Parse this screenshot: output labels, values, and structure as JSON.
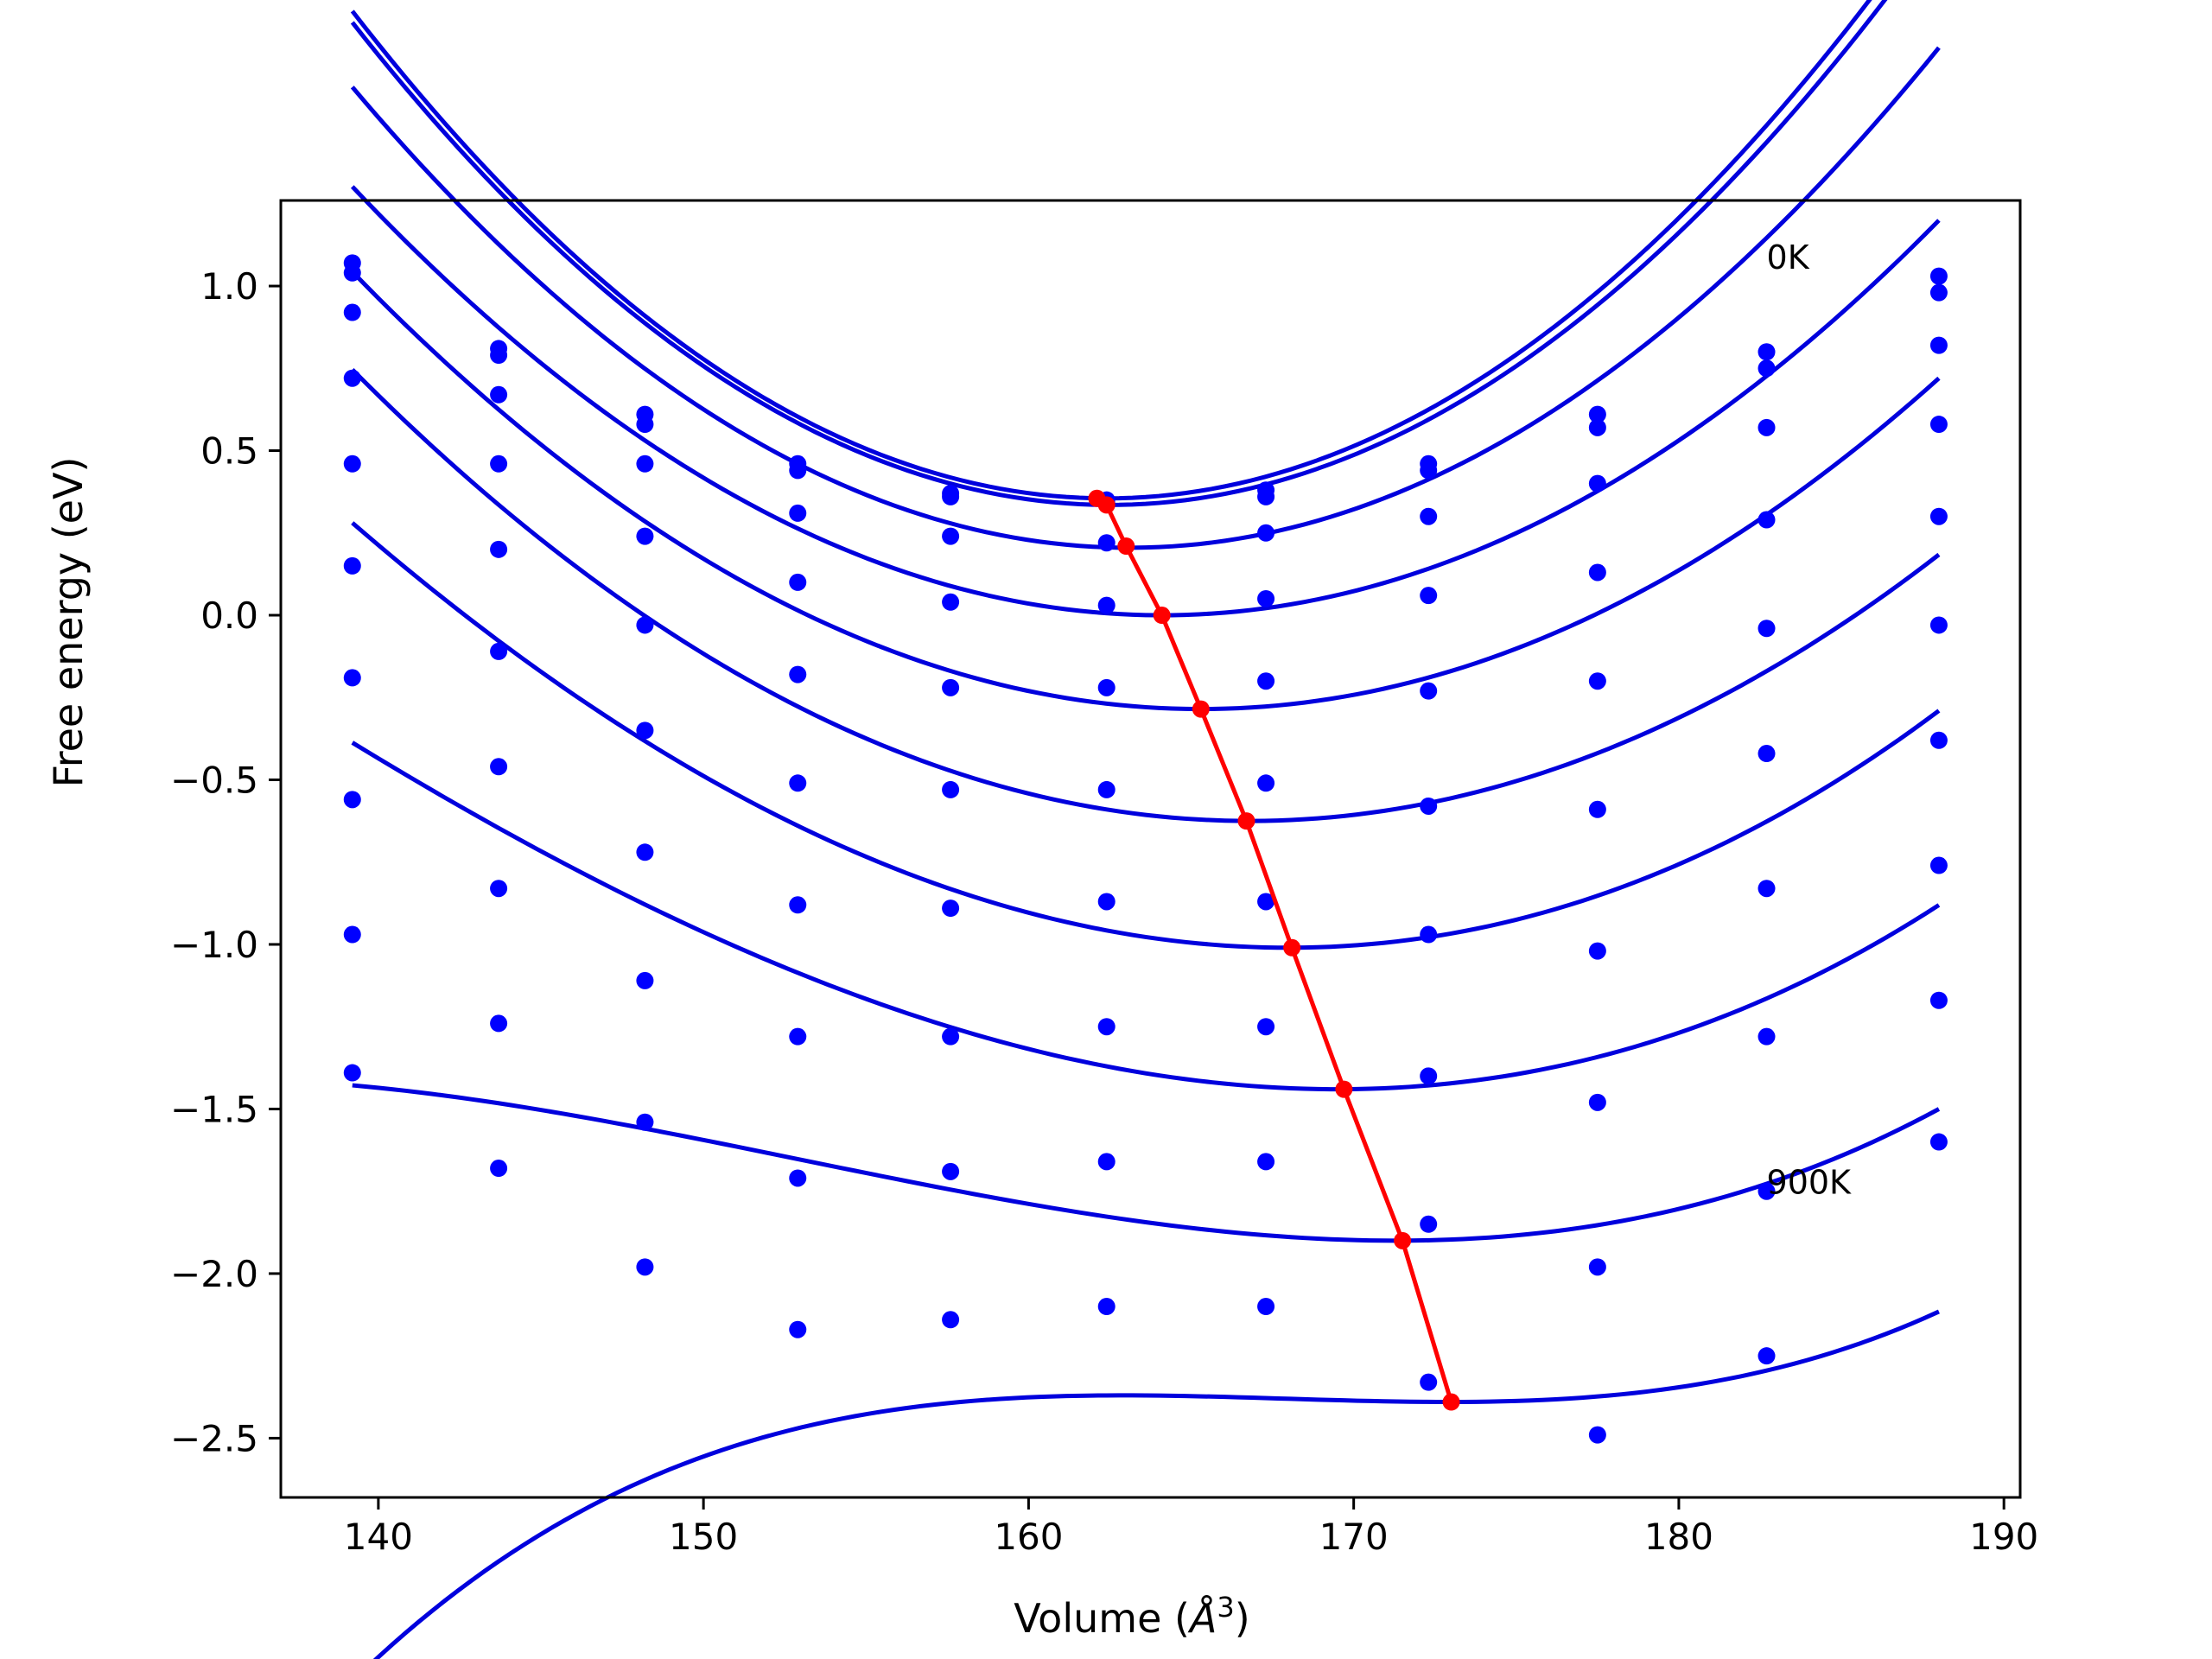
{
  "chart_data": {
    "type": "scatter",
    "title": "",
    "xlabel": "Volume (",
    "xlabel_symbol": "Å",
    "xlabel_sup": "3",
    "xlabel_end": ")",
    "ylabel": "Free energy (eV)",
    "xlim": [
      137,
      190.5
    ],
    "ylim": [
      -2.68,
      1.26
    ],
    "grid": false,
    "xticks": [
      140,
      150,
      160,
      170,
      180,
      190
    ],
    "xtick_labels": [
      "140",
      "150",
      "160",
      "170",
      "180",
      "190"
    ],
    "yticks": [
      1.0,
      0.5,
      0.0,
      -0.5,
      -1.0,
      -1.5,
      -2.0,
      -2.5
    ],
    "ytick_labels": [
      "1.0",
      "0.5",
      "0.0",
      "−0.5",
      "−1.0",
      "−1.5",
      "−2.0",
      "−2.5"
    ],
    "annotations": [
      {
        "text": "0K",
        "x": 182.7,
        "y": 1.09
      },
      {
        "text": "900K",
        "x": 182.7,
        "y": -1.72
      }
    ],
    "volumes": [
      139.2,
      143.7,
      148.2,
      152.9,
      157.6,
      162.4,
      167.3,
      172.3,
      177.5,
      182.7,
      188.0
    ],
    "series": [
      {
        "values": [
          1.07,
          0.81,
          0.61,
          0.46,
          0.37,
          0.35,
          0.38,
          0.46,
          0.61,
          0.8,
          1.03
        ],
        "fit": [
          139.2,
          188.0,
          162.4,
          0.355,
          0.00275,
          0.0
        ]
      },
      {
        "values": [
          1.04,
          0.79,
          0.58,
          0.44,
          0.36,
          0.34,
          0.36,
          0.44,
          0.57,
          0.75,
          0.98
        ],
        "fit": [
          139.2,
          188.0,
          162.5,
          0.335,
          0.0027,
          0.0
        ]
      },
      {
        "values": [
          0.92,
          0.67,
          0.46,
          0.31,
          0.24,
          0.22,
          0.25,
          0.3,
          0.4,
          0.57,
          0.82
        ],
        "fit": [
          139.2,
          188.0,
          163.1,
          0.205,
          0.00245,
          0.0
        ]
      },
      {
        "values": [
          0.72,
          0.46,
          0.24,
          0.1,
          0.04,
          0.03,
          0.05,
          0.06,
          0.13,
          0.29,
          0.58
        ],
        "fit": [
          139.2,
          188.0,
          164.1,
          0.0,
          0.0021,
          0.0
        ]
      },
      {
        "values": [
          0.46,
          0.2,
          -0.03,
          -0.18,
          -0.22,
          -0.22,
          -0.2,
          -0.23,
          -0.2,
          -0.04,
          0.3
        ],
        "fit": [
          139.2,
          188.0,
          165.3,
          -0.285,
          0.00195,
          0.0
        ]
      },
      {
        "values": [
          0.15,
          -0.11,
          -0.35,
          -0.51,
          -0.53,
          -0.53,
          -0.51,
          -0.58,
          -0.59,
          -0.42,
          -0.03
        ],
        "fit": [
          139.2,
          188.0,
          166.8,
          -0.625,
          0.0018,
          0.0
        ]
      },
      {
        "values": [
          -0.19,
          -0.46,
          -0.72,
          -0.88,
          -0.89,
          -0.87,
          -0.87,
          -0.97,
          -1.02,
          -0.83,
          -0.38
        ],
        "fit": [
          139.2,
          188.0,
          168.0,
          -1.01,
          0.0017,
          5e-06
        ]
      },
      {
        "values": [
          -0.56,
          -0.83,
          -1.11,
          -1.28,
          -1.28,
          -1.25,
          -1.25,
          -1.4,
          -1.48,
          -1.28,
          -0.76
        ],
        "fit": [
          139.2,
          188.0,
          169.5,
          -1.44,
          0.00145,
          1e-05
        ]
      },
      {
        "values": [
          -0.97,
          -1.24,
          -1.54,
          -1.71,
          -1.69,
          -1.66,
          -1.66,
          -1.85,
          -1.98,
          -1.75,
          -1.17
        ],
        "fit": [
          139.2,
          188.0,
          171.3,
          -1.9,
          0.0011,
          2e-05
        ]
      },
      {
        "values": [
          -1.39,
          -1.68,
          -1.98,
          -2.17,
          -2.14,
          -2.1,
          -2.1,
          -2.33,
          -2.49,
          -2.25,
          -1.6
        ],
        "fit": [
          139.2,
          188.0,
          172.9,
          -2.39,
          0.0006,
          4e-05
        ]
      }
    ],
    "equilibrium": {
      "x": [
        162.1,
        162.4,
        163.0,
        164.1,
        165.3,
        166.7,
        168.1,
        169.7,
        171.5,
        173.0
      ],
      "y": [
        0.355,
        0.335,
        0.21,
        0.0,
        -0.285,
        -0.625,
        -1.01,
        -1.44,
        -1.9,
        -2.39
      ]
    },
    "colors": {
      "points": "#0000ff",
      "fits": "#0000dd",
      "equilibrium": "#ff0000"
    }
  }
}
